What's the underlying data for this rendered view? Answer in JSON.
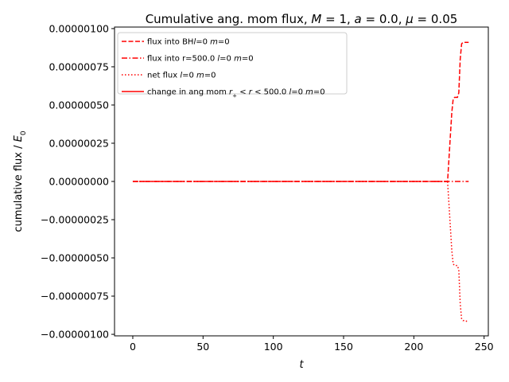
{
  "chart_data": {
    "type": "line",
    "title": "Cumulative ang. mom flux, M = 1, a = 0.0, μ = 0.05",
    "xlabel": "t",
    "ylabel": "cumulative flux / E₀",
    "xlim": [
      -13,
      253
    ],
    "ylim": [
      -1.01e-06,
      1.01e-06
    ],
    "xticks": [
      0,
      50,
      100,
      150,
      200,
      250
    ],
    "xtick_labels": [
      "0",
      "50",
      "100",
      "150",
      "200",
      "250"
    ],
    "yticks": [
      -1e-06,
      -7.5e-07,
      -5e-07,
      -2.5e-07,
      0,
      2.5e-07,
      5e-07,
      7.5e-07,
      1e-06
    ],
    "ytick_labels": [
      "−0.00000100",
      "−0.00000075",
      "−0.00000050",
      "−0.00000025",
      "0.00000000",
      "0.00000025",
      "0.00000050",
      "0.00000075",
      "0.00000100"
    ],
    "grid": false,
    "legend_position": "top-left",
    "color": "#ff0000",
    "series": [
      {
        "name": "flux into BH l=0 m=0",
        "style": "dashed",
        "x": [
          0,
          100,
          200,
          224,
          225,
          226,
          227,
          228,
          229,
          230,
          231,
          232,
          233,
          234,
          235,
          236,
          237,
          238,
          239
        ],
        "y": [
          0,
          0,
          0,
          0,
          1.5e-07,
          3e-07,
          4.5e-07,
          5.4e-07,
          5.5e-07,
          5.5e-07,
          5.5e-07,
          5.8e-07,
          8e-07,
          9e-07,
          9.1e-07,
          9.1e-07,
          9.1e-07,
          9.1e-07,
          9.1e-07
        ]
      },
      {
        "name": "flux into r=500.0 l=0 m=0",
        "style": "dashdot",
        "x": [
          0,
          100,
          200,
          239
        ],
        "y": [
          0,
          0,
          0,
          0
        ]
      },
      {
        "name": "net flux l=0 m=0",
        "style": "dotted",
        "x": [
          0,
          100,
          200,
          224,
          225,
          226,
          227,
          228,
          229,
          230,
          231,
          232,
          233,
          234,
          235,
          236,
          237,
          238
        ],
        "y": [
          0,
          0,
          0,
          0,
          -1.5e-07,
          -3e-07,
          -4.5e-07,
          -5.4e-07,
          -5.5e-07,
          -5.5e-07,
          -5.5e-07,
          -5.8e-07,
          -8e-07,
          -9e-07,
          -9.1e-07,
          -9.1e-07,
          -9.1e-07,
          -9.2e-07
        ]
      },
      {
        "name": "change in ang mom r₊ < r < 500.0 l=0 m=0",
        "style": "solid",
        "x": [],
        "y": []
      }
    ]
  }
}
